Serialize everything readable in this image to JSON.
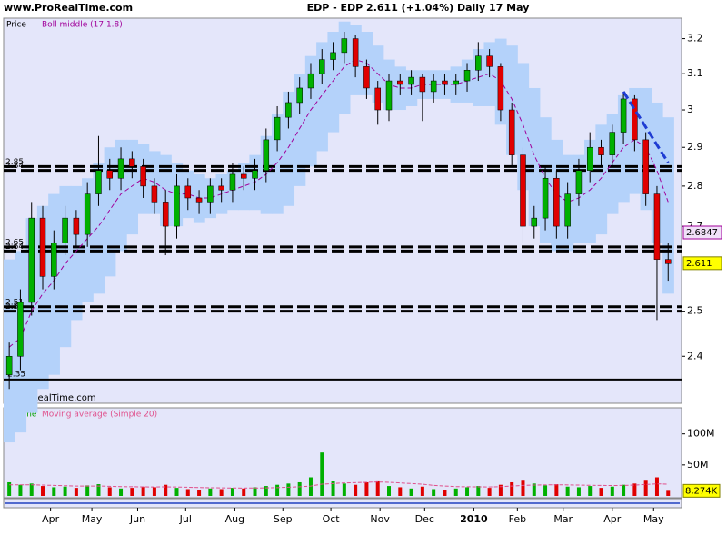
{
  "chart_data": {
    "type": "candlestick",
    "site": "www.ProRealTime.com",
    "title": "EDP - EDP    2.611 (+1.04%)   Daily  17 May",
    "copyright": "© ProRealTime.com",
    "price_label": "Price",
    "band_label": "Boll middle (17 1.8)",
    "log_scale": true,
    "ylim": [
      2.3,
      3.26
    ],
    "yticks": [
      3.2,
      3.1,
      3,
      2.9,
      2.8,
      2.7,
      2.5,
      2.4
    ],
    "xlim": [
      -0.5,
      60.2
    ],
    "xticks": [
      {
        "value": 3.7,
        "label": "Apr"
      },
      {
        "value": 7.4,
        "label": "May"
      },
      {
        "value": 11.5,
        "label": "Jun"
      },
      {
        "value": 15.8,
        "label": "Jul"
      },
      {
        "value": 20.2,
        "label": "Aug"
      },
      {
        "value": 24.5,
        "label": "Sep"
      },
      {
        "value": 28.8,
        "label": "Oct"
      },
      {
        "value": 33.2,
        "label": "Nov"
      },
      {
        "value": 37.2,
        "label": "Dec"
      },
      {
        "value": 41.6,
        "label": "2010"
      },
      {
        "value": 45.5,
        "label": "Feb"
      },
      {
        "value": 49.6,
        "label": "Mar"
      },
      {
        "value": 54,
        "label": "Apr"
      },
      {
        "value": 57.7,
        "label": "May"
      }
    ],
    "open": [
      2.36,
      2.4,
      2.52,
      2.72,
      2.58,
      2.66,
      2.72,
      2.68,
      2.78,
      2.84,
      2.82,
      2.87,
      2.85,
      2.8,
      2.76,
      2.7,
      2.8,
      2.77,
      2.76,
      2.8,
      2.79,
      2.83,
      2.82,
      2.84,
      2.92,
      2.98,
      3.02,
      3.06,
      3.1,
      3.14,
      3.16,
      3.2,
      3.12,
      3.06,
      3.0,
      3.08,
      3.07,
      3.09,
      3.05,
      3.08,
      3.07,
      3.08,
      3.11,
      3.15,
      3.12,
      3.0,
      2.88,
      2.7,
      2.72,
      2.82,
      2.7,
      2.78,
      2.84,
      2.9,
      2.88,
      2.94,
      3.03,
      2.92,
      2.78,
      2.62
    ],
    "high": [
      2.43,
      2.55,
      2.76,
      2.75,
      2.69,
      2.75,
      2.74,
      2.81,
      2.93,
      2.87,
      2.9,
      2.89,
      2.87,
      2.82,
      2.79,
      2.83,
      2.82,
      2.79,
      2.82,
      2.82,
      2.86,
      2.85,
      2.87,
      2.95,
      3.01,
      3.05,
      3.09,
      3.13,
      3.17,
      3.19,
      3.22,
      3.21,
      3.14,
      3.08,
      3.1,
      3.1,
      3.11,
      3.1,
      3.1,
      3.1,
      3.1,
      3.13,
      3.19,
      3.17,
      3.13,
      3.02,
      2.9,
      2.75,
      2.85,
      2.84,
      2.81,
      2.87,
      2.94,
      2.92,
      2.96,
      3.05,
      3.04,
      2.94,
      2.8,
      2.66
    ],
    "low": [
      2.33,
      2.37,
      2.49,
      2.55,
      2.55,
      2.63,
      2.65,
      2.65,
      2.75,
      2.79,
      2.79,
      2.82,
      2.77,
      2.73,
      2.63,
      2.67,
      2.74,
      2.73,
      2.73,
      2.76,
      2.76,
      2.79,
      2.79,
      2.81,
      2.89,
      2.95,
      2.99,
      3.03,
      3.07,
      3.11,
      3.13,
      3.09,
      3.03,
      2.96,
      2.97,
      3.04,
      3.04,
      2.97,
      3.02,
      3.04,
      3.04,
      3.05,
      3.08,
      3.09,
      2.97,
      2.85,
      2.66,
      2.67,
      2.69,
      2.67,
      2.67,
      2.75,
      2.81,
      2.85,
      2.85,
      2.91,
      2.89,
      2.75,
      2.48,
      2.57
    ],
    "close": [
      2.4,
      2.52,
      2.72,
      2.58,
      2.66,
      2.72,
      2.68,
      2.78,
      2.84,
      2.82,
      2.87,
      2.85,
      2.8,
      2.76,
      2.7,
      2.8,
      2.77,
      2.76,
      2.8,
      2.79,
      2.83,
      2.82,
      2.84,
      2.92,
      2.98,
      3.02,
      3.06,
      3.1,
      3.14,
      3.16,
      3.2,
      3.12,
      3.06,
      3.0,
      3.08,
      3.07,
      3.09,
      3.05,
      3.08,
      3.07,
      3.08,
      3.11,
      3.15,
      3.12,
      3.0,
      2.88,
      2.7,
      2.72,
      2.82,
      2.7,
      2.78,
      2.84,
      2.9,
      2.88,
      2.94,
      3.03,
      2.92,
      2.78,
      2.62,
      2.61
    ],
    "up_color": "#00b000",
    "down_color": "#e00000",
    "band_color": "#b4d2fa",
    "middle_color": "#a0009a",
    "band_middle": [
      2.42,
      2.44,
      2.5,
      2.54,
      2.57,
      2.61,
      2.64,
      2.67,
      2.7,
      2.74,
      2.78,
      2.8,
      2.82,
      2.81,
      2.79,
      2.78,
      2.78,
      2.77,
      2.77,
      2.78,
      2.79,
      2.8,
      2.81,
      2.83,
      2.86,
      2.9,
      2.95,
      3.0,
      3.04,
      3.08,
      3.12,
      3.14,
      3.13,
      3.1,
      3.07,
      3.06,
      3.06,
      3.07,
      3.07,
      3.07,
      3.07,
      3.08,
      3.09,
      3.1,
      3.08,
      3.03,
      2.96,
      2.88,
      2.82,
      2.78,
      2.76,
      2.77,
      2.79,
      2.82,
      2.86,
      2.9,
      2.92,
      2.9,
      2.84,
      2.76
    ],
    "band_upper": [
      2.62,
      2.64,
      2.72,
      2.75,
      2.78,
      2.8,
      2.8,
      2.82,
      2.86,
      2.9,
      2.92,
      2.92,
      2.91,
      2.89,
      2.88,
      2.86,
      2.84,
      2.83,
      2.82,
      2.83,
      2.84,
      2.86,
      2.88,
      2.93,
      2.99,
      3.05,
      3.1,
      3.15,
      3.19,
      3.22,
      3.25,
      3.24,
      3.22,
      3.18,
      3.14,
      3.12,
      3.11,
      3.11,
      3.11,
      3.11,
      3.12,
      3.14,
      3.17,
      3.19,
      3.2,
      3.18,
      3.13,
      3.06,
      2.98,
      2.92,
      2.88,
      2.88,
      2.92,
      2.96,
      2.99,
      3.04,
      3.06,
      3.06,
      3.02,
      2.98
    ],
    "band_lower": [
      2.22,
      2.24,
      2.28,
      2.33,
      2.36,
      2.42,
      2.48,
      2.52,
      2.54,
      2.58,
      2.64,
      2.68,
      2.73,
      2.73,
      2.7,
      2.7,
      2.72,
      2.71,
      2.72,
      2.73,
      2.74,
      2.74,
      2.74,
      2.73,
      2.73,
      2.75,
      2.8,
      2.85,
      2.89,
      2.94,
      2.99,
      3.04,
      3.04,
      3.02,
      3.0,
      3.0,
      3.01,
      3.03,
      3.03,
      3.03,
      3.02,
      3.02,
      3.01,
      3.01,
      2.96,
      2.88,
      2.79,
      2.7,
      2.66,
      2.64,
      2.64,
      2.66,
      2.66,
      2.68,
      2.73,
      2.76,
      2.78,
      2.74,
      2.66,
      2.54
    ],
    "levels": [
      2.85,
      2.84,
      2.65,
      2.64,
      2.51,
      2.5
    ],
    "support": 2.35,
    "trendline": {
      "x": [
        55,
        59
      ],
      "y": [
        3.05,
        2.86
      ],
      "color": "#1e3cd2"
    },
    "price_boxes": [
      {
        "value": 2.6847,
        "color": "#f0e0f8",
        "border": "#a0009a"
      },
      {
        "value": 2.611,
        "color": "#ffff00",
        "border": "#808000"
      }
    ],
    "volume_label": "Volume",
    "volume_ma_label": "Moving average (Simple 20)",
    "volume_ylim": [
      0,
      142000000
    ],
    "volume_yticks": [
      {
        "value": 100000000,
        "label": "100M"
      },
      {
        "value": 50000000,
        "label": "50M"
      }
    ],
    "volume": [
      22000000,
      18000000,
      20000000,
      16000000,
      14000000,
      15000000,
      13000000,
      17000000,
      19000000,
      14000000,
      12000000,
      13000000,
      15000000,
      14000000,
      18000000,
      13000000,
      11000000,
      10000000,
      12000000,
      11000000,
      13000000,
      12000000,
      14000000,
      16000000,
      18000000,
      20000000,
      22000000,
      30000000,
      70000000,
      24000000,
      20000000,
      18000000,
      22000000,
      25000000,
      16000000,
      14000000,
      12000000,
      15000000,
      11000000,
      10000000,
      12000000,
      14000000,
      16000000,
      13000000,
      18000000,
      22000000,
      26000000,
      20000000,
      17000000,
      19000000,
      15000000,
      14000000,
      16000000,
      13000000,
      15000000,
      18000000,
      20000000,
      26000000,
      30000000,
      8274000
    ],
    "volume_ma": [
      18000000,
      18000000,
      18000000,
      17500000,
      17000000,
      16500000,
      16000000,
      16000000,
      16000000,
      15500000,
      15000000,
      14800000,
      14600000,
      14500000,
      14600000,
      14400000,
      14000000,
      13500000,
      13200000,
      13000000,
      12800000,
      12700000,
      12800000,
      13000000,
      13400000,
      14000000,
      14800000,
      16000000,
      19000000,
      20000000,
      21000000,
      21500000,
      22000000,
      22500000,
      22000000,
      21000000,
      20000000,
      19000000,
      17000000,
      16000000,
      15000000,
      14800000,
      14600000,
      14500000,
      15000000,
      16000000,
      17000000,
      17500000,
      17800000,
      18000000,
      17800000,
      17500000,
      17200000,
      17000000,
      16800000,
      17000000,
      17500000,
      18500000,
      19500000,
      19000000
    ],
    "volume_box": {
      "value": 8274000,
      "label": "8,274K"
    },
    "volume_ma_color": "#e0508c"
  }
}
